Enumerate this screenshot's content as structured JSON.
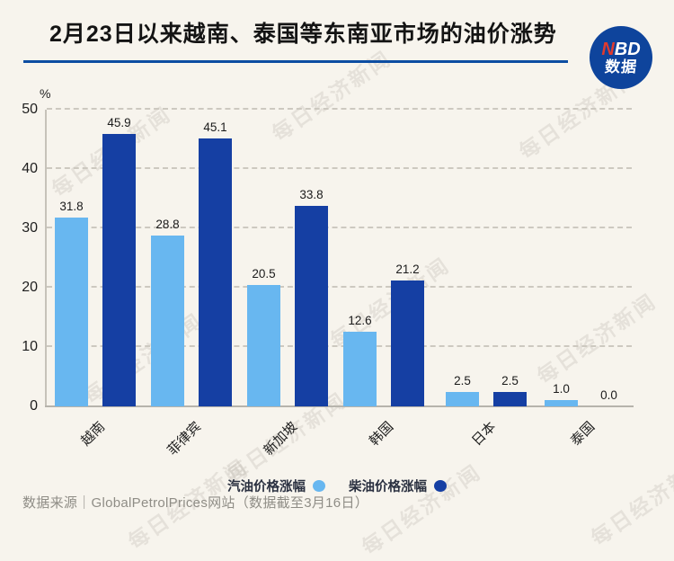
{
  "header": {
    "title": "2月23日以来越南、泰国等东南亚市场的油价涨势",
    "logo": {
      "n": "N",
      "bd": "BD",
      "subtitle": "数据"
    }
  },
  "chart_data": {
    "type": "bar",
    "title": "2月23日以来越南、泰国等东南亚市场的油价涨势",
    "categories": [
      "越南",
      "菲律宾",
      "新加坡",
      "韩国",
      "日本",
      "泰国"
    ],
    "series": [
      {
        "name": "汽油价格涨幅",
        "color": "#68b7f0",
        "values": [
          31.8,
          28.8,
          20.5,
          12.6,
          2.5,
          1.0
        ]
      },
      {
        "name": "柴油价格涨幅",
        "color": "#153fa3",
        "values": [
          45.9,
          45.1,
          33.8,
          21.2,
          2.5,
          0.0
        ]
      }
    ],
    "xlabel": "",
    "ylabel": "%",
    "ylim": [
      0,
      50
    ],
    "yticks": [
      0,
      10,
      20,
      30,
      40,
      50
    ],
    "grid": "dashed-horizontal",
    "legend_position": "bottom",
    "value_labels": true
  },
  "footer": {
    "source": "数据来源｜GlobalPetrolPrices网站（数据截至3月16日）"
  },
  "watermark": {
    "text": "每日经济新闻"
  },
  "colors": {
    "background": "#f7f4ed",
    "accent_line": "#0c4da2",
    "logo_circle": "#0e449c",
    "logo_n_red": "#e03a2e",
    "gasoline_bar": "#68b7f0",
    "diesel_bar": "#153fa3"
  }
}
